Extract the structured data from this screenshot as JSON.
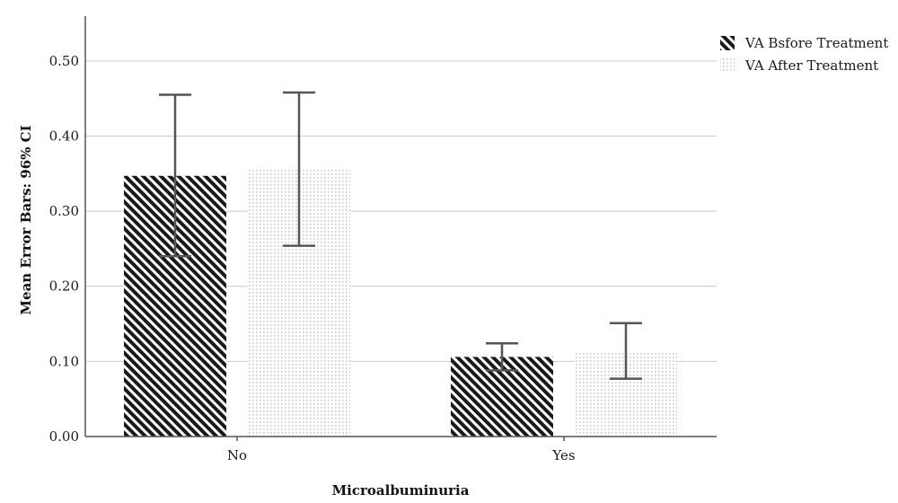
{
  "chart_data": {
    "type": "bar",
    "xlabel": "Microalbuminuria",
    "ylabel": "Mean Error Bars: 96% CI",
    "categories": [
      "No",
      "Yes"
    ],
    "ylim": [
      0,
      0.55
    ],
    "yticks": [
      "0.00",
      "0.10",
      "0.20",
      "0.30",
      "0.40",
      "0.50"
    ],
    "yticks_values": [
      0,
      0.1,
      0.2,
      0.3,
      0.4,
      0.5
    ],
    "grid": true,
    "legend_position": "top-right",
    "series": [
      {
        "name": "VA Bsfore Treatment",
        "pattern": "diagonal-hatch",
        "color": "#1a1a1a",
        "values": [
          0.347,
          0.106
        ],
        "ci_low": [
          0.24,
          0.088
        ],
        "ci_high": [
          0.455,
          0.124
        ]
      },
      {
        "name": "VA After Treatment",
        "pattern": "dots",
        "color": "#c8c8c8",
        "values": [
          0.355,
          0.113
        ],
        "ci_low": [
          0.254,
          0.077
        ],
        "ci_high": [
          0.458,
          0.151
        ]
      }
    ]
  }
}
